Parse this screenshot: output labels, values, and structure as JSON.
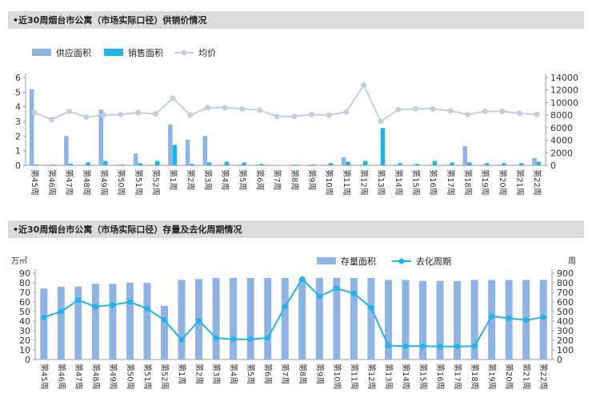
{
  "chart_data": [
    {
      "type": "bar",
      "title": "•近30周烟台市公寓（市场实际口径）供销价情况",
      "categories": [
        "第45周",
        "第46周",
        "第47周",
        "第48周",
        "第49周",
        "第50周",
        "第51周",
        "第52周",
        "第1周",
        "第2周",
        "第3周",
        "第4周",
        "第5周",
        "第6周",
        "第7周",
        "第8周",
        "第9周",
        "第10周",
        "第11周",
        "第12周",
        "第13周",
        "第14周",
        "第15周",
        "第16周",
        "第17周",
        "第18周",
        "第19周",
        "第20周",
        "第21周",
        "第22周"
      ],
      "ylim": [
        0,
        6
      ],
      "y2lim": [
        0,
        14000
      ],
      "yticks": [
        "0",
        "1",
        "2",
        "3",
        "4",
        "5",
        "6"
      ],
      "y2ticks": [
        "0",
        "2000",
        "4000",
        "6000",
        "8000",
        "10000",
        "12000",
        "14000"
      ],
      "series": [
        {
          "name": "供应面积",
          "kind": "bar",
          "color": "#8fb3e3",
          "values": [
            5.2,
            0.05,
            2.0,
            0.05,
            3.8,
            0.05,
            0.8,
            0.05,
            2.8,
            1.75,
            2.0,
            0.05,
            0.05,
            0.05,
            0,
            0.05,
            0.05,
            0.05,
            0.55,
            0.05,
            0.05,
            0.05,
            0.05,
            0.05,
            0.05,
            1.3,
            0.05,
            0.05,
            0.05,
            0.5
          ]
        },
        {
          "name": "销售面积",
          "kind": "bar",
          "color": "#1fb5e8",
          "values": [
            0.05,
            0.05,
            0.1,
            0.2,
            0.3,
            0.05,
            0.15,
            0.3,
            1.4,
            0.1,
            0.2,
            0.25,
            0.2,
            0.1,
            0,
            0.05,
            0.05,
            0.15,
            0.25,
            0.3,
            2.55,
            0.15,
            0.1,
            0.3,
            0.2,
            0.2,
            0.15,
            0.15,
            0.15,
            0.25
          ]
        },
        {
          "name": "均价",
          "kind": "line",
          "axis": "y2",
          "color": "#c3cee0",
          "values": [
            8400,
            7300,
            8600,
            7700,
            8000,
            8100,
            8400,
            8200,
            10700,
            8000,
            9200,
            9200,
            9000,
            8800,
            7800,
            7800,
            8100,
            8000,
            8500,
            12800,
            7000,
            8900,
            9000,
            9000,
            8700,
            8100,
            8600,
            8600,
            8300,
            8100
          ]
        }
      ]
    },
    {
      "type": "bar",
      "title": "•近30周烟台市公寓（市场实际口径）存量及去化周期情况",
      "ylabel": "万㎡",
      "y2label": "周",
      "categories": [
        "第45周",
        "第46周",
        "第47周",
        "第48周",
        "第49周",
        "第50周",
        "第51周",
        "第52周",
        "第1周",
        "第2周",
        "第3周",
        "第4周",
        "第5周",
        "第6周",
        "第7周",
        "第8周",
        "第9周",
        "第10周",
        "第11周",
        "第12周",
        "第13周",
        "第14周",
        "第15周",
        "第16周",
        "第17周",
        "第18周",
        "第19周",
        "第20周",
        "第21周",
        "第22周"
      ],
      "ylim": [
        0,
        90
      ],
      "y2lim": [
        0,
        900
      ],
      "yticks": [
        "0",
        "10",
        "20",
        "30",
        "40",
        "50",
        "60",
        "70",
        "80",
        "90"
      ],
      "y2ticks": [
        "0",
        "100",
        "200",
        "300",
        "400",
        "500",
        "600",
        "700",
        "800",
        "900"
      ],
      "series": [
        {
          "name": "存量面积",
          "kind": "bar",
          "color": "#8fb3e3",
          "values": [
            74,
            76,
            76,
            79,
            79,
            80,
            80,
            56,
            83,
            84,
            85,
            85,
            85,
            85,
            85,
            84,
            85,
            85,
            85,
            85,
            83,
            83,
            82,
            82,
            82,
            83,
            83,
            83,
            83,
            83
          ]
        },
        {
          "name": "去化周期",
          "kind": "line",
          "axis": "y2",
          "color": "#1fb5e8",
          "values": [
            440,
            500,
            620,
            550,
            570,
            600,
            530,
            410,
            205,
            405,
            225,
            210,
            210,
            225,
            550,
            840,
            660,
            740,
            690,
            540,
            145,
            140,
            140,
            135,
            135,
            140,
            450,
            430,
            410,
            440
          ]
        }
      ]
    }
  ]
}
